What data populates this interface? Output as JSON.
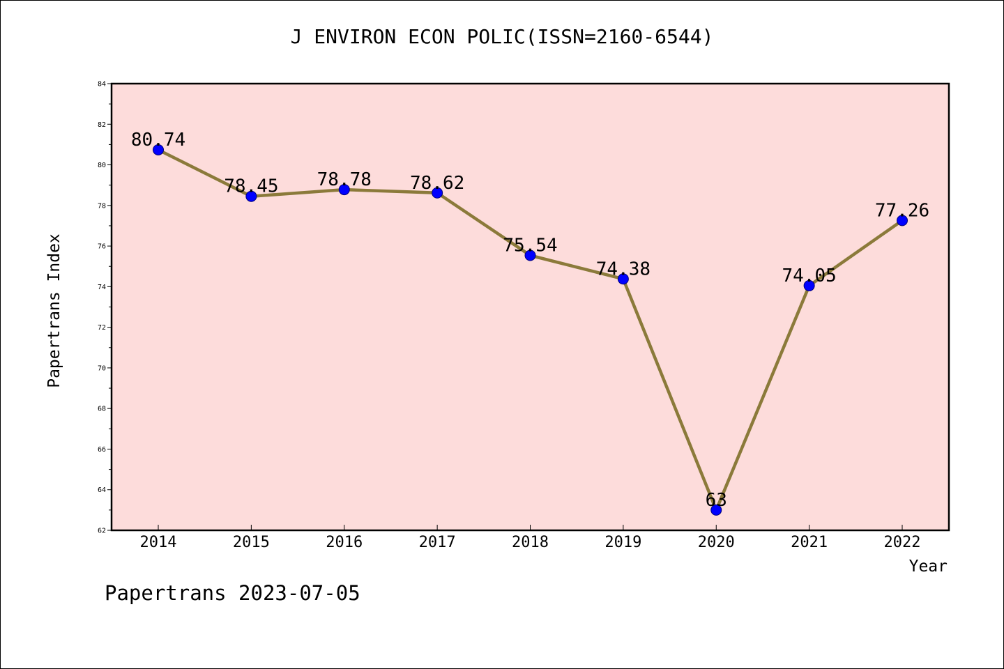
{
  "title": "J ENVIRON ECON POLIC(ISSN=2160-6544)",
  "footer": "Papertrans 2023-07-05",
  "colors": {
    "plot_background": "#fddcdb",
    "line": "#8b7a3a",
    "marker": "#0000ff",
    "axis": "#000000"
  },
  "chart_data": {
    "type": "line",
    "xlabel": "Year",
    "ylabel": "Papertrans Index",
    "categories": [
      "2014",
      "2015",
      "2016",
      "2017",
      "2018",
      "2019",
      "2020",
      "2021",
      "2022"
    ],
    "values": [
      80.74,
      78.45,
      78.78,
      78.62,
      75.54,
      74.38,
      63,
      74.05,
      77.26
    ],
    "data_labels": [
      "80.74",
      "78.45",
      "78.78",
      "78.62",
      "75.54",
      "74.38",
      "63",
      "74.05",
      "77.26"
    ],
    "ylim": [
      62,
      84
    ],
    "yticks": [
      "62",
      "64",
      "66",
      "68",
      "70",
      "72",
      "74",
      "76",
      "78",
      "80",
      "82",
      "84"
    ],
    "grid": false,
    "legend": "none",
    "marker": "circle"
  }
}
